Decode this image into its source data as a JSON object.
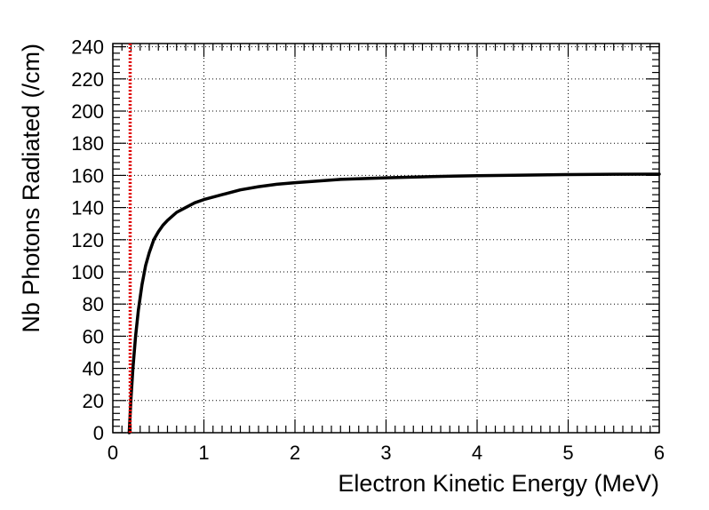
{
  "chart_data": {
    "type": "line",
    "title": "",
    "xlabel": "Electron Kinetic Energy (MeV)",
    "ylabel": "Nb Photons Radiated (/cm)",
    "xlim": [
      0,
      6
    ],
    "ylim": [
      0,
      242
    ],
    "x_ticks": [
      0,
      1,
      2,
      3,
      4,
      5,
      6
    ],
    "y_ticks": [
      0,
      20,
      40,
      60,
      80,
      100,
      120,
      140,
      160,
      180,
      200,
      220,
      240
    ],
    "grid": true,
    "legend": "none",
    "series": [
      {
        "color": "#000000",
        "style": "solid",
        "x": [
          0.18,
          0.2,
          0.22,
          0.25,
          0.28,
          0.32,
          0.36,
          0.4,
          0.45,
          0.5,
          0.55,
          0.6,
          0.7,
          0.8,
          0.9,
          1.0,
          1.2,
          1.4,
          1.6,
          1.8,
          2.0,
          2.5,
          3.0,
          3.5,
          4.0,
          4.5,
          5.0,
          5.5,
          6.0
        ],
        "y": [
          0,
          22,
          40,
          60,
          76,
          92,
          104,
          112,
          120,
          125,
          129,
          132,
          137,
          140,
          143,
          145,
          148,
          151,
          153,
          154.5,
          155.5,
          157.5,
          158.5,
          159.3,
          159.8,
          160.2,
          160.5,
          160.7,
          160.8
        ]
      },
      {
        "color": "#e00000",
        "style": "dotted",
        "x": [
          0.19,
          0.19
        ],
        "y": [
          0,
          242
        ]
      }
    ]
  }
}
